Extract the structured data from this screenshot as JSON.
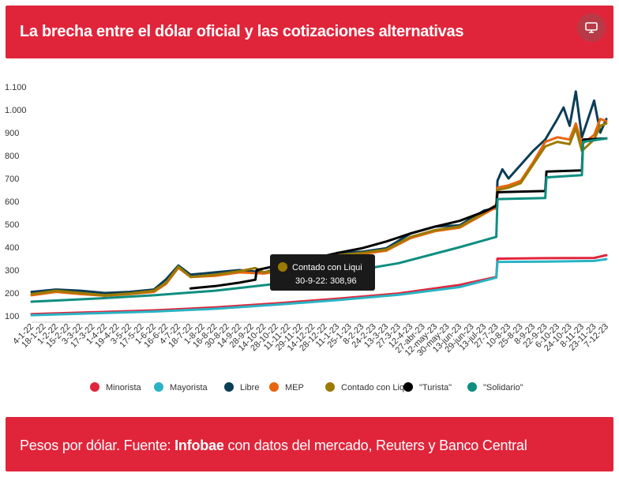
{
  "header": {
    "title": "La brecha entre el dólar oficial y las cotizaciones alternativas",
    "menu_icon": "monitor-icon"
  },
  "footer": {
    "prefix": "Pesos por dólar. Fuente: ",
    "source_bold": "Infobae",
    "suffix": " con datos del mercado, Reuters y Banco Central"
  },
  "tooltip": {
    "series": "Contado con Liqui",
    "text": "30-9-22: 308,96",
    "color": "#9b7a00"
  },
  "chart_data": {
    "type": "line",
    "title": "",
    "xlabel": "",
    "ylabel": "",
    "ylim": [
      100,
      1100
    ],
    "yticks": [
      100,
      200,
      300,
      400,
      500,
      600,
      700,
      800,
      900,
      1000,
      1100
    ],
    "ytick_labels": [
      "100",
      "200",
      "300",
      "400",
      "500",
      "600",
      "700",
      "800",
      "900",
      "1.000",
      "1.100"
    ],
    "x_tick_labels": [
      "4-1-22",
      "18-1-22",
      "1-2-22",
      "15-2-22",
      "3-3-22",
      "17-3-22",
      "1-4-22",
      "19-4-22",
      "3-5-22",
      "17-5-22",
      "1-6-22",
      "16-6-22",
      "4-7-22",
      "18-7-22",
      "1-8-22",
      "16-8-22",
      "30-8-22",
      "14-9-22",
      "28-9-22",
      "14-10-22",
      "28-10-22",
      "11-11-22",
      "29-11-22",
      "14-12-22",
      "28-12-22",
      "11-1-23",
      "25-1-23",
      "8-2-23",
      "24-2-23",
      "13-3-23",
      "27-3-23",
      "12-4-23",
      "27-abr-23",
      "12-may-23",
      "30-may-23",
      "13-jun-23",
      "29-jun-23",
      "13-jul-23",
      "27-7-23",
      "10-8-23",
      "25-8-23",
      "8-9-23",
      "22-9-23",
      "6-10-23",
      "24-10-23",
      "8-11-23",
      "23-11-23",
      "7-12-23"
    ],
    "grid": false,
    "legend_position": "bottom",
    "series": [
      {
        "name": "Minorista",
        "color": "#e0253b",
        "x": [
          0,
          5,
          10,
          15,
          20,
          25,
          30,
          35,
          38,
          38.1,
          42,
          46,
          47
        ],
        "values": [
          108,
          116,
          124,
          137,
          155,
          175,
          198,
          235,
          270,
          350,
          352,
          353,
          365
        ]
      },
      {
        "name": "Mayorista",
        "color": "#2ab3c4",
        "x": [
          0,
          5,
          10,
          15,
          20,
          25,
          30,
          35,
          38,
          38.1,
          42,
          46,
          47
        ],
        "values": [
          103,
          111,
          119,
          131,
          149,
          169,
          192,
          226,
          267,
          336,
          337,
          340,
          348
        ]
      },
      {
        "name": "Libre",
        "color": "#0b3d57",
        "x": [
          0,
          2,
          4,
          6,
          8,
          10,
          11,
          12,
          13,
          15,
          17,
          19,
          21,
          23,
          25,
          27,
          29,
          31,
          33,
          35,
          37,
          38,
          38.1,
          38.5,
          39,
          40,
          41,
          42,
          43,
          43.5,
          44,
          44.5,
          45,
          45.5,
          46,
          46.5,
          47
        ],
        "values": [
          205,
          215,
          210,
          200,
          205,
          215,
          260,
          320,
          280,
          290,
          300,
          290,
          320,
          325,
          375,
          380,
          395,
          460,
          490,
          495,
          560,
          570,
          690,
          740,
          700,
          760,
          820,
          870,
          960,
          1010,
          930,
          1080,
          880,
          960,
          1040,
          900,
          960
        ]
      },
      {
        "name": "MEP",
        "color": "#e8650c",
        "x": [
          0,
          2,
          4,
          6,
          8,
          10,
          11,
          12,
          13,
          15,
          17,
          19,
          21,
          23,
          25,
          27,
          29,
          31,
          33,
          35,
          37,
          38,
          38.1,
          39,
          40,
          41,
          42,
          43,
          44,
          44.5,
          45,
          46,
          46.5,
          47
        ],
        "values": [
          190,
          205,
          195,
          188,
          195,
          205,
          240,
          310,
          270,
          275,
          290,
          285,
          305,
          320,
          360,
          370,
          385,
          440,
          470,
          485,
          545,
          575,
          660,
          670,
          690,
          770,
          860,
          880,
          870,
          940,
          850,
          890,
          960,
          950
        ]
      },
      {
        "name": "Contado con Liqui",
        "color": "#9b7a00",
        "x": [
          0,
          2,
          4,
          6,
          8,
          10,
          11,
          12,
          13,
          15,
          17,
          18.3,
          19,
          21,
          23,
          25,
          27,
          29,
          31,
          33,
          35,
          37,
          38,
          38.1,
          39,
          40,
          41,
          42,
          43,
          44,
          44.5,
          45,
          46,
          46.5,
          47
        ],
        "values": [
          195,
          210,
          200,
          190,
          198,
          210,
          245,
          315,
          270,
          280,
          295,
          308.96,
          290,
          310,
          325,
          365,
          375,
          390,
          445,
          475,
          490,
          550,
          585,
          650,
          660,
          680,
          760,
          840,
          860,
          850,
          920,
          820,
          870,
          930,
          940
        ]
      },
      {
        "name": "\"Turista\"",
        "color": "#000000",
        "x": [
          13,
          15,
          17,
          18.3,
          18.4,
          21,
          23,
          25,
          27,
          29,
          31,
          33,
          35,
          37,
          38,
          38.1,
          42,
          42.1,
          45,
          45.1,
          47
        ],
        "values": [
          220,
          230,
          245,
          258,
          300,
          330,
          350,
          375,
          395,
          425,
          460,
          490,
          515,
          555,
          580,
          640,
          645,
          730,
          735,
          870,
          875
        ]
      },
      {
        "name": "\"Solidario\"",
        "color": "#0e8e80",
        "x": [
          0,
          5,
          10,
          15,
          20,
          25,
          30,
          35,
          38,
          38.1,
          42,
          42.1,
          45,
          45.1,
          47
        ],
        "values": [
          162,
          175,
          190,
          210,
          240,
          285,
          330,
          400,
          445,
          610,
          615,
          705,
          715,
          860,
          875
        ]
      }
    ]
  }
}
